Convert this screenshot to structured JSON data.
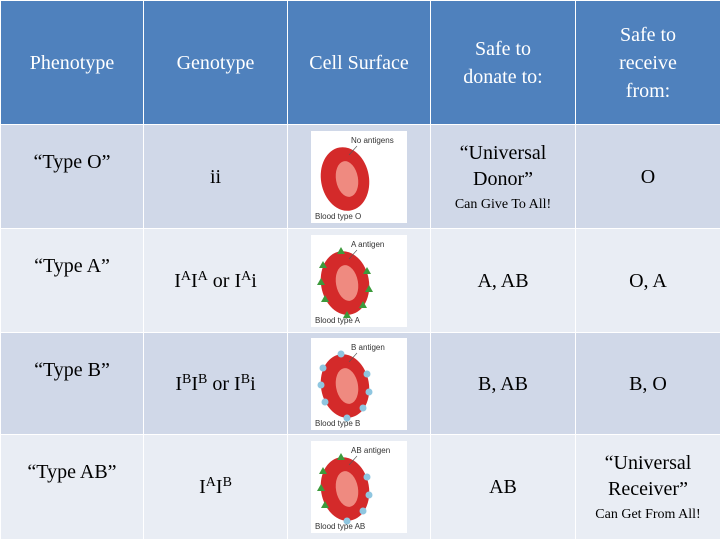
{
  "header": [
    "Phenotype",
    "Genotype",
    "Cell Surface",
    "Safe to donate to:",
    "Safe to receive from:"
  ],
  "rows": [
    {
      "phenotype": "“Type O”",
      "genotype": [
        {
          "t": "ii"
        }
      ],
      "cell": {
        "antigen": "No antigens",
        "label": "Blood type O"
      },
      "donate": {
        "text": "“Universal Donor”",
        "note": "Can Give To All!"
      },
      "receive": {
        "text": "O"
      }
    },
    {
      "phenotype": "“Type A”",
      "genotype": [
        {
          "t": "I"
        },
        {
          "sup": "A"
        },
        {
          "t": "I"
        },
        {
          "sup": "A"
        },
        {
          "t": " or I"
        },
        {
          "sup": "A"
        },
        {
          "t": "i"
        }
      ],
      "cell": {
        "antigen": "A antigen",
        "label": "Blood type A"
      },
      "donate": {
        "text": "A, AB"
      },
      "receive": {
        "text": "O, A"
      }
    },
    {
      "phenotype": "“Type B”",
      "genotype": [
        {
          "t": "I"
        },
        {
          "sup": "B"
        },
        {
          "t": "I"
        },
        {
          "sup": "B"
        },
        {
          "t": " or I"
        },
        {
          "sup": "B"
        },
        {
          "t": "i"
        }
      ],
      "cell": {
        "antigen": "B antigen",
        "label": "Blood type B"
      },
      "donate": {
        "text": "B, AB"
      },
      "receive": {
        "text": "B, O"
      }
    },
    {
      "phenotype": "“Type AB”",
      "genotype": [
        {
          "t": "I"
        },
        {
          "sup": "A"
        },
        {
          "t": "I"
        },
        {
          "sup": "B"
        }
      ],
      "cell": {
        "antigen": "AB antigen",
        "label": "Blood type AB"
      },
      "donate": {
        "text": "AB"
      },
      "receive": {
        "text": "“Universal Receiver”",
        "note": "Can Get From All!"
      }
    }
  ]
}
